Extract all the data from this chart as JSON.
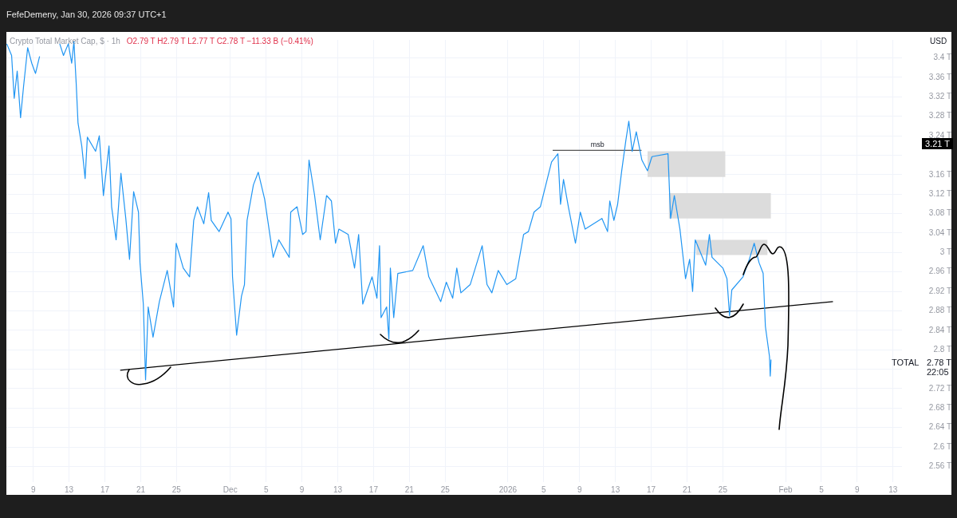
{
  "chart_data": {
    "type": "line",
    "title": "Crypto Total Market Cap, $ · 1h",
    "subtitle": "O2.79 T H2.79 T L2.77 T C2.78 T −11.33 B (−0.41%)",
    "ylabel": "USD",
    "xlim": [
      "2025-11-06",
      "2026-02-14"
    ],
    "xticks": [
      {
        "value": "2025-11-09",
        "label": "9"
      },
      {
        "value": "2025-11-13",
        "label": "13"
      },
      {
        "value": "2025-11-17",
        "label": "17"
      },
      {
        "value": "2025-11-21",
        "label": "21"
      },
      {
        "value": "2025-11-25",
        "label": "25"
      },
      {
        "value": "2025-12-01",
        "label": "Dec"
      },
      {
        "value": "2025-12-05",
        "label": "5"
      },
      {
        "value": "2025-12-09",
        "label": "9"
      },
      {
        "value": "2025-12-13",
        "label": "13"
      },
      {
        "value": "2025-12-17",
        "label": "17"
      },
      {
        "value": "2025-12-21",
        "label": "21"
      },
      {
        "value": "2025-12-25",
        "label": "25"
      },
      {
        "value": "2026-01-01",
        "label": "2026"
      },
      {
        "value": "2026-01-05",
        "label": "5"
      },
      {
        "value": "2026-01-09",
        "label": "9"
      },
      {
        "value": "2026-01-13",
        "label": "13"
      },
      {
        "value": "2026-01-17",
        "label": "17"
      },
      {
        "value": "2026-01-21",
        "label": "21"
      },
      {
        "value": "2026-01-25",
        "label": "25"
      },
      {
        "value": "2026-02-01",
        "label": "Feb"
      },
      {
        "value": "2026-02-05",
        "label": "5"
      },
      {
        "value": "2026-02-09",
        "label": "9"
      },
      {
        "value": "2026-02-13",
        "label": "13"
      }
    ],
    "ylim": [
      2.528,
      3.437
    ],
    "yticks": [
      {
        "value": 2.56,
        "label": "2.56 T"
      },
      {
        "value": 2.6,
        "label": "2.6 T"
      },
      {
        "value": 2.64,
        "label": "2.64 T"
      },
      {
        "value": 2.68,
        "label": "2.68 T"
      },
      {
        "value": 2.72,
        "label": "2.72 T"
      },
      {
        "value": 2.76,
        "label": null
      },
      {
        "value": 2.8,
        "label": "2.8 T"
      },
      {
        "value": 2.84,
        "label": "2.84 T"
      },
      {
        "value": 2.88,
        "label": "2.88 T"
      },
      {
        "value": 2.92,
        "label": "2.92 T"
      },
      {
        "value": 2.96,
        "label": "2.96 T"
      },
      {
        "value": 3,
        "label": "3 T"
      },
      {
        "value": 3.04,
        "label": "3.04 T"
      },
      {
        "value": 3.08,
        "label": "3.08 T"
      },
      {
        "value": 3.12,
        "label": "3.12 T"
      },
      {
        "value": 3.16,
        "label": "3.16 T"
      },
      {
        "value": 3.2,
        "label": null
      },
      {
        "value": 3.24,
        "label": "3.24 T"
      },
      {
        "value": 3.28,
        "label": "3.28 T"
      },
      {
        "value": 3.32,
        "label": "3.32 T"
      },
      {
        "value": 3.36,
        "label": "3.36 T"
      },
      {
        "value": 3.4,
        "label": "3.4 T"
      }
    ],
    "grid": true,
    "legend": false,
    "series": [
      {
        "type": "area",
        "color": "#dcdcdc",
        "x": [
          "2026-01-16T14:00",
          "2026-01-25T07:00"
        ],
        "lower": [
          3.155,
          3.155
        ],
        "upper": [
          3.208,
          3.208
        ],
        "values": [
          null,
          null
        ]
      },
      {
        "type": "area",
        "color": "#dcdcdc",
        "x": [
          "2026-01-18T23:00",
          "2026-01-30T09:00"
        ],
        "lower": [
          3.07,
          3.07
        ],
        "upper": [
          3.122,
          3.122
        ],
        "values": [
          null,
          null
        ]
      },
      {
        "type": "area",
        "color": "#dcdcdc",
        "x": [
          "2026-01-22T00:00",
          "2026-01-30T00:00"
        ],
        "lower": [
          2.995,
          2.995
        ],
        "upper": [
          3.026,
          3.026
        ],
        "values": [
          null,
          null
        ]
      },
      {
        "color": "#2196f3",
        "x": [
          "2025-11-06T01:00",
          "2025-11-06T14:00",
          "2025-11-06T21:00",
          "2025-11-07T05:00",
          "2025-11-07T14:00",
          "2025-11-07T22:00",
          "2025-11-08T09:00",
          "2025-11-08T20:00",
          "2025-11-09T06:00",
          "2025-11-09T17:00",
          "2025-11-10T14:00",
          "2025-11-11T23:00",
          "2025-11-12T09:00",
          "2025-11-12T22:00",
          "2025-11-13T07:00",
          "2025-11-13T13:00",
          "2025-11-13T19:00",
          "2025-11-14T00:00",
          "2025-11-14T10:00",
          "2025-11-14T19:00",
          "2025-11-15T01:00",
          "2025-11-15T23:00",
          "2025-11-16T09:00",
          "2025-11-16T20:00",
          "2025-11-17T11:00",
          "2025-11-17T18:00",
          "2025-11-18T06:00",
          "2025-11-18T19:00",
          "2025-11-19T08:00",
          "2025-11-19T18:00",
          "2025-11-20T05:00",
          "2025-11-20T18:00",
          "2025-11-20T22:00",
          "2025-11-21T07:00",
          "2025-11-21T13:00",
          "2025-11-21T20:00",
          "2025-11-22T09:00",
          "2025-11-23T02:00",
          "2025-11-23T23:00",
          "2025-11-24T16:00",
          "2025-11-24T23:00",
          "2025-11-25T18:00",
          "2025-11-26T11:00",
          "2025-11-26T22:00",
          "2025-11-27T08:00",
          "2025-11-28T01:00",
          "2025-11-28T14:00",
          "2025-11-28T21:00",
          "2025-11-29T18:00",
          "2025-11-30T18:00",
          "2025-12-01T02:00",
          "2025-12-01T06:00",
          "2025-12-01T17:00",
          "2025-12-02T06:00",
          "2025-12-02T14:00",
          "2025-12-02T21:00",
          "2025-12-03T14:00",
          "2025-12-04T03:00",
          "2025-12-04T20:00",
          "2025-12-05T19:00",
          "2025-12-06T10:00",
          "2025-12-07T14:00",
          "2025-12-07T18:00",
          "2025-12-08T11:00",
          "2025-12-09T02:00",
          "2025-12-09T11:00",
          "2025-12-09T19:00",
          "2025-12-10T10:00",
          "2025-12-11T01:00",
          "2025-12-11T18:00",
          "2025-12-12T07:00",
          "2025-12-12T18:00",
          "2025-12-13T03:00",
          "2025-12-14T04:00",
          "2025-12-14T21:00",
          "2025-12-15T08:00",
          "2025-12-15T19:00",
          "2025-12-16T20:00",
          "2025-12-17T09:00",
          "2025-12-17T16:00",
          "2025-12-17T20:00",
          "2025-12-18T11:00",
          "2025-12-18T17:00",
          "2025-12-18T21:00",
          "2025-12-19T06:00",
          "2025-12-19T17:00",
          "2025-12-21T09:00",
          "2025-12-22T13:00",
          "2025-12-23T04:00",
          "2025-12-24T12:00",
          "2025-12-25T03:00",
          "2025-12-25T20:00",
          "2025-12-26T07:00",
          "2025-12-26T18:00",
          "2025-12-27T19:00",
          "2025-12-29T03:00",
          "2025-12-29T16:00",
          "2025-12-30T05:00",
          "2025-12-30T22:00",
          "2025-12-31T21:00",
          "2026-01-01T21:00",
          "2026-01-02T18:00",
          "2026-01-03T07:00",
          "2026-01-03T22:00",
          "2026-01-04T15:00",
          "2026-01-05T04:00",
          "2026-01-05T21:00",
          "2026-01-06T14:00",
          "2026-01-06T21:00",
          "2026-01-07T05:00",
          "2026-01-07T18:00",
          "2026-01-08T13:00",
          "2026-01-09T02:00",
          "2026-01-09T15:00",
          "2026-01-11T12:00",
          "2026-01-12T03:00",
          "2026-01-12T09:00",
          "2026-01-12T20:00",
          "2026-01-13T06:00",
          "2026-01-13T17:00",
          "2026-01-14T04:00",
          "2026-01-14T12:00",
          "2026-01-14T21:00",
          "2026-01-15T08:00",
          "2026-01-15T23:00",
          "2026-01-16T14:00",
          "2026-01-17T02:00",
          "2026-01-18T21:00",
          "2026-01-19T04:00",
          "2026-01-19T14:00",
          "2026-01-20T05:00",
          "2026-01-20T20:00",
          "2026-01-21T07:00",
          "2026-01-21T15:00",
          "2026-01-21T22:00",
          "2026-01-23T02:00",
          "2026-01-23T12:00",
          "2026-01-23T19:00",
          "2026-01-25T00:00",
          "2026-01-25T11:00",
          "2026-01-25T18:00",
          "2026-01-26T00:00",
          "2026-01-27T06:00",
          "2026-01-27T23:00",
          "2026-01-28T12:00",
          "2026-01-29T01:00",
          "2026-01-29T12:00",
          "2026-01-29T18:00",
          "2026-01-30T05:00",
          "2026-01-30T07:00",
          "2026-01-30T09:00"
        ],
        "values": [
          3.429,
          3.405,
          3.317,
          3.373,
          3.277,
          3.341,
          3.421,
          3.389,
          3.368,
          3.403,
          null,
          3.429,
          3.405,
          3.429,
          3.389,
          3.434,
          3.349,
          3.266,
          3.219,
          3.152,
          3.237,
          3.208,
          3.24,
          3.117,
          3.219,
          3.094,
          3.026,
          3.163,
          3.07,
          2.986,
          3.125,
          3.083,
          2.979,
          2.894,
          2.738,
          2.888,
          2.826,
          2.899,
          2.963,
          2.888,
          3.019,
          2.968,
          2.95,
          3.066,
          3.094,
          3.059,
          3.123,
          3.066,
          3.043,
          3.083,
          3.069,
          2.95,
          2.83,
          2.91,
          2.934,
          3.066,
          3.139,
          3.165,
          3.11,
          2.99,
          3.026,
          2.99,
          3.083,
          3.094,
          3.037,
          3.043,
          3.19,
          3.117,
          3.026,
          3.117,
          3.106,
          3.019,
          3.048,
          3.037,
          2.968,
          3.037,
          2.894,
          2.95,
          2.906,
          3.014,
          2.866,
          2.888,
          2.822,
          2.968,
          2.866,
          2.957,
          2.963,
          3.014,
          2.95,
          2.899,
          2.939,
          2.906,
          2.968,
          2.917,
          2.934,
          3.014,
          2.934,
          2.917,
          2.963,
          2.934,
          2.946,
          3.037,
          3.043,
          3.083,
          3.094,
          3.134,
          3.186,
          3.203,
          3.099,
          3.15,
          3.094,
          3.019,
          3.083,
          3.048,
          3.07,
          3.043,
          3.106,
          3.066,
          3.099,
          3.168,
          3.23,
          3.27,
          3.208,
          3.248,
          3.19,
          3.168,
          3.197,
          3.203,
          3.07,
          3.117,
          3.048,
          2.946,
          2.986,
          2.92,
          3.026,
          2.974,
          3.037,
          2.99,
          2.968,
          2.946,
          2.87,
          2.923,
          2.95,
          2.986,
          3.019,
          2.979,
          2.957,
          2.848,
          2.786,
          2.746,
          2.78
        ]
      },
      {
        "color": "#000000",
        "x": [
          "2025-11-18T17:00",
          "2026-02-06T07:00"
        ],
        "values": [
          2.758,
          2.899
        ]
      },
      {
        "color": "#555555",
        "x": [
          "2026-01-06T00:00",
          "2026-01-15T22:00"
        ],
        "values": [
          3.21,
          3.21
        ]
      }
    ],
    "annotations": [
      "FefeDemeny, Jan 30, 2026 09:37 UTC+1",
      {
        "text": "msb",
        "x": "2026-01-11T00:00",
        "y": 3.21
      },
      "3.21 T",
      "TOTAL",
      "2.78 T",
      "22:05"
    ]
  }
}
